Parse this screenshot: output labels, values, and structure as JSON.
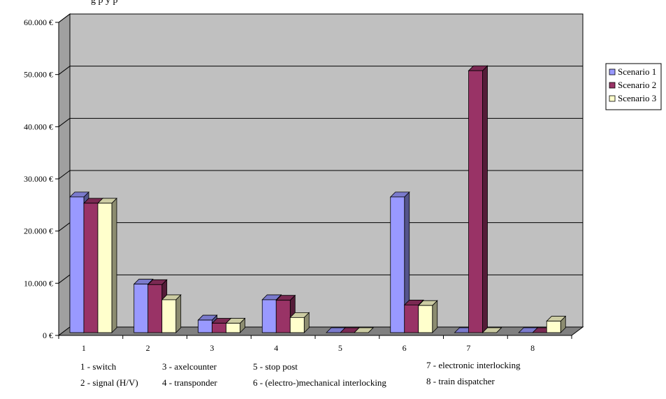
{
  "title_fragment": "g                                                                         p  y                 p",
  "chart_data": {
    "type": "bar",
    "categories": [
      "1",
      "2",
      "3",
      "4",
      "5",
      "6",
      "7",
      "8"
    ],
    "series": [
      {
        "name": "Scenario 1",
        "color": "#9999ff",
        "values": [
          26000,
          9300,
          2400,
          6300,
          0,
          26000,
          0,
          0
        ]
      },
      {
        "name": "Scenario 2",
        "color": "#993366",
        "values": [
          24800,
          9200,
          1800,
          6200,
          0,
          5300,
          50200,
          0
        ]
      },
      {
        "name": "Scenario 3",
        "color": "#ffffcc",
        "values": [
          24800,
          6300,
          1800,
          2900,
          0,
          5200,
          0,
          2200
        ]
      }
    ],
    "y_ticks": [
      "0 €",
      "10.000 €",
      "20.000 €",
      "30.000 €",
      "40.000 €",
      "50.000 €",
      "60.000 €"
    ],
    "ylim": [
      0,
      60000
    ],
    "grid": true,
    "legend_position": "right"
  },
  "notes": [
    "1 - switch",
    "3 - axelcounter",
    "5 - stop post",
    "7 - electronic interlocking",
    "2 - signal (H/V)",
    "4 - transponder",
    "6 - (electro-)mechanical interlocking",
    "8 - train dispatcher"
  ]
}
